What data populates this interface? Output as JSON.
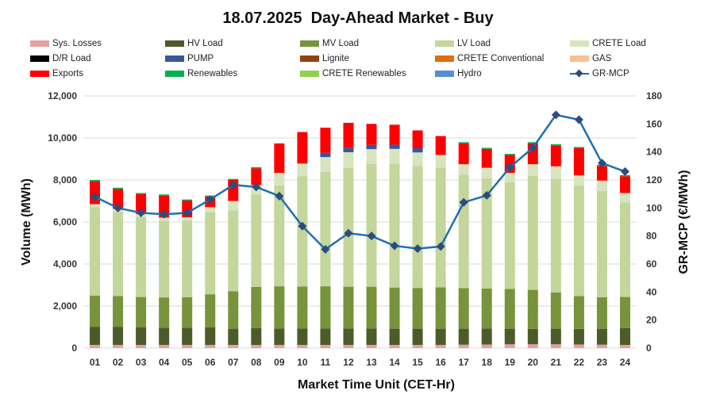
{
  "chart_data": {
    "type": "bar",
    "title": "18.07.2025  Day-Ahead Market - Buy",
    "xlabel": "Market Time Unit (CET-Hr)",
    "ylabel": "Volume (MWh)",
    "y2label": "GR-MCP (€/MWh)",
    "ylim": [
      0,
      12000
    ],
    "y2lim": [
      0,
      180
    ],
    "yticks": [
      "0",
      "2,000",
      "4,000",
      "6,000",
      "8,000",
      "10,000",
      "12,000"
    ],
    "y2ticks": [
      "0",
      "20",
      "40",
      "60",
      "80",
      "100",
      "120",
      "140",
      "160",
      "180"
    ],
    "gridlines": true,
    "legend_position": "top",
    "categories": [
      "01",
      "02",
      "03",
      "04",
      "05",
      "06",
      "07",
      "08",
      "09",
      "10",
      "11",
      "12",
      "13",
      "14",
      "15",
      "16",
      "17",
      "18",
      "19",
      "20",
      "21",
      "22",
      "23",
      "24"
    ],
    "series": [
      {
        "name": "Sys. Losses",
        "color": "#e6a0a0",
        "values": [
          150,
          150,
          150,
          150,
          150,
          150,
          150,
          150,
          150,
          150,
          150,
          150,
          150,
          150,
          150,
          150,
          160,
          170,
          180,
          180,
          180,
          170,
          160,
          150
        ]
      },
      {
        "name": "HV Load",
        "color": "#4d5a2a",
        "values": [
          850,
          850,
          830,
          810,
          810,
          830,
          770,
          800,
          780,
          780,
          780,
          780,
          780,
          770,
          770,
          770,
          760,
          760,
          740,
          730,
          740,
          740,
          760,
          800
        ]
      },
      {
        "name": "MV Load",
        "color": "#77933c",
        "values": [
          1500,
          1480,
          1450,
          1450,
          1460,
          1580,
          1780,
          1960,
          2010,
          2000,
          2010,
          1990,
          1990,
          1960,
          1940,
          1970,
          1930,
          1900,
          1890,
          1860,
          1730,
          1560,
          1500,
          1480
        ]
      },
      {
        "name": "LV Load",
        "color": "#c3d69b",
        "values": [
          4200,
          4000,
          3800,
          3650,
          3650,
          3900,
          3850,
          4400,
          4800,
          5250,
          5450,
          5650,
          5850,
          5900,
          5800,
          5700,
          5400,
          5250,
          5080,
          5430,
          5400,
          5250,
          5050,
          4500
        ]
      },
      {
        "name": "CRETE Load",
        "color": "#d7e4bd",
        "values": [
          150,
          150,
          150,
          150,
          150,
          250,
          450,
          450,
          600,
          600,
          700,
          750,
          700,
          700,
          650,
          600,
          500,
          500,
          450,
          550,
          600,
          500,
          500,
          450
        ]
      },
      {
        "name": "D/R Load",
        "color": "#000000",
        "values": [
          0,
          0,
          0,
          0,
          0,
          0,
          0,
          0,
          0,
          0,
          0,
          0,
          0,
          0,
          0,
          0,
          0,
          0,
          0,
          0,
          0,
          0,
          0,
          0
        ]
      },
      {
        "name": "PUMP",
        "color": "#34589a",
        "values": [
          0,
          0,
          0,
          0,
          0,
          0,
          0,
          0,
          0,
          0,
          200,
          200,
          200,
          200,
          200,
          0,
          0,
          0,
          0,
          0,
          0,
          0,
          0,
          0
        ]
      },
      {
        "name": "Lignite",
        "color": "#8b4513",
        "values": [
          0,
          0,
          0,
          0,
          0,
          0,
          0,
          0,
          0,
          0,
          0,
          0,
          0,
          0,
          0,
          0,
          0,
          0,
          0,
          0,
          0,
          0,
          0,
          0
        ]
      },
      {
        "name": "CRETE Conventional",
        "color": "#e46c0a",
        "values": [
          0,
          0,
          0,
          0,
          0,
          0,
          0,
          0,
          0,
          0,
          0,
          0,
          0,
          0,
          0,
          0,
          0,
          0,
          0,
          0,
          0,
          0,
          0,
          0
        ]
      },
      {
        "name": "GAS",
        "color": "#fac090",
        "values": [
          0,
          0,
          0,
          0,
          0,
          0,
          0,
          0,
          0,
          0,
          0,
          0,
          0,
          0,
          0,
          0,
          0,
          0,
          0,
          0,
          0,
          0,
          0,
          0
        ]
      },
      {
        "name": "Exports",
        "color": "#ff0000",
        "values": [
          1100,
          950,
          950,
          1050,
          800,
          500,
          1000,
          800,
          1400,
          1500,
          1200,
          1200,
          1000,
          950,
          850,
          900,
          1000,
          900,
          850,
          1000,
          1000,
          1300,
          700,
          800
        ]
      },
      {
        "name": "Renewables",
        "color": "#00b050",
        "values": [
          50,
          50,
          50,
          50,
          50,
          50,
          50,
          50,
          0,
          0,
          0,
          0,
          0,
          0,
          0,
          0,
          50,
          50,
          50,
          50,
          50,
          50,
          50,
          50
        ]
      },
      {
        "name": "CRETE Renewables",
        "color": "#92d050",
        "values": [
          0,
          0,
          0,
          0,
          0,
          0,
          0,
          0,
          0,
          0,
          0,
          0,
          0,
          0,
          0,
          0,
          0,
          0,
          0,
          0,
          0,
          0,
          0,
          0
        ]
      },
      {
        "name": "Hydro",
        "color": "#558ed5",
        "values": [
          0,
          0,
          0,
          0,
          0,
          0,
          0,
          0,
          0,
          0,
          0,
          0,
          0,
          0,
          0,
          0,
          0,
          0,
          0,
          0,
          0,
          0,
          0,
          0
        ]
      }
    ],
    "line_series": {
      "name": "GR-MCP",
      "color": "#1f6fb0",
      "marker_color": "#2b4c7e",
      "axis": "right",
      "values": [
        108,
        100,
        96.5,
        95.5,
        96.5,
        106,
        116.5,
        115,
        108.5,
        87,
        70.5,
        82,
        80,
        73,
        71,
        72.5,
        104,
        109,
        129,
        143,
        166.5,
        163,
        132,
        126
      ]
    }
  },
  "legend_layout": [
    [
      "Sys. Losses",
      "HV Load",
      "MV Load",
      "LV Load",
      "CRETE Load"
    ],
    [
      "D/R Load",
      "PUMP",
      "Lignite",
      "CRETE Conventional",
      "GAS"
    ],
    [
      "Exports",
      "Renewables",
      "CRETE Renewables",
      "Hydro",
      "GR-MCP"
    ]
  ]
}
